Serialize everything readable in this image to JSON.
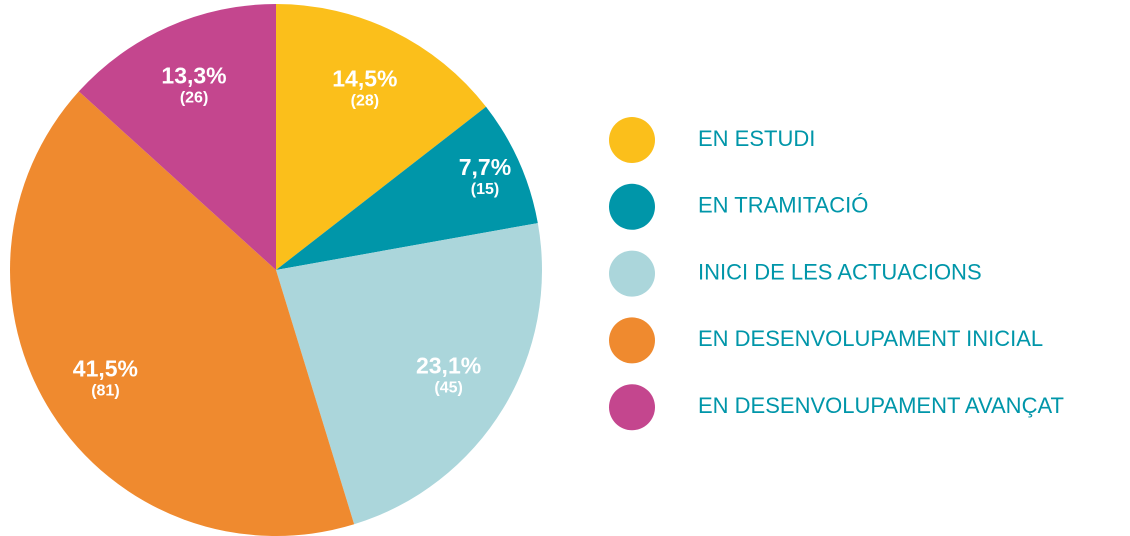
{
  "chart_data": {
    "type": "pie",
    "categories": [
      "EN ESTUDI",
      "EN TRAMITACIÓ",
      "INICI DE LES ACTUACIONS",
      "EN DESENVOLUPAMENT INICIAL",
      "EN DESENVOLUPAMENT AVANÇAT"
    ],
    "values": [
      14.5,
      7.7,
      23.1,
      41.5,
      13.3
    ],
    "value_labels": [
      "14,5%",
      "7,7%",
      "23,1%",
      "41,5%",
      "13,3%"
    ],
    "counts": [
      28,
      15,
      45,
      81,
      26
    ],
    "count_labels": [
      "(28)",
      "(15)",
      "(45)",
      "(81)",
      "(26)"
    ],
    "colors": [
      "#fbbf1b",
      "#0096a9",
      "#abd6db",
      "#ef8a2f",
      "#c4468e"
    ],
    "legend": "right"
  }
}
